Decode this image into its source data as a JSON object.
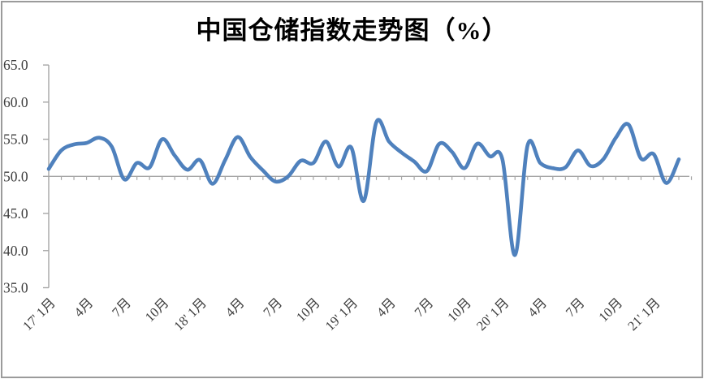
{
  "title": "中国仓储指数走势图（%）",
  "chart_data": {
    "type": "line",
    "title": "中国仓储指数走势图（%）",
    "start_month": "17' 1月",
    "end_month": "21' 3月",
    "visible_tick_labels": [
      "17' 1月",
      "4月",
      "7月",
      "10月",
      "18' 1月",
      "4月",
      "7月",
      "10月",
      "19' 1月",
      "4月",
      "7月",
      "10月",
      "20' 1月",
      "4月",
      "7月",
      "10月",
      "21' 1月"
    ],
    "visible_tick_indices": [
      0,
      3,
      6,
      9,
      12,
      15,
      18,
      21,
      24,
      27,
      30,
      33,
      36,
      39,
      42,
      45,
      48
    ],
    "values": [
      51.0,
      53.5,
      54.3,
      54.5,
      55.2,
      54.0,
      49.6,
      51.8,
      51.2,
      55.0,
      52.8,
      50.9,
      52.2,
      49.0,
      52.2,
      55.3,
      52.6,
      50.8,
      49.3,
      50.0,
      52.1,
      51.8,
      54.7,
      51.3,
      53.9,
      46.7,
      57.3,
      54.7,
      53.2,
      52.0,
      50.7,
      54.4,
      53.3,
      51.1,
      54.4,
      52.7,
      52.3,
      39.4,
      54.2,
      51.8,
      51.1,
      51.2,
      53.5,
      51.4,
      52.3,
      55.2,
      57.0,
      52.4,
      53.0,
      49.1,
      52.3
    ],
    "ylim": [
      35,
      65
    ],
    "ytick_step": 5,
    "ytick_labels": [
      "65.0",
      "60.0",
      "55.0",
      "50.0",
      "45.0",
      "40.0",
      "35.0"
    ],
    "category_axis_crosses_at": 50,
    "grid": "off",
    "legend": "none",
    "line_color": "#4F81BD",
    "axis_color": "#a6a6a6",
    "label_color": "#3d3d3d"
  }
}
